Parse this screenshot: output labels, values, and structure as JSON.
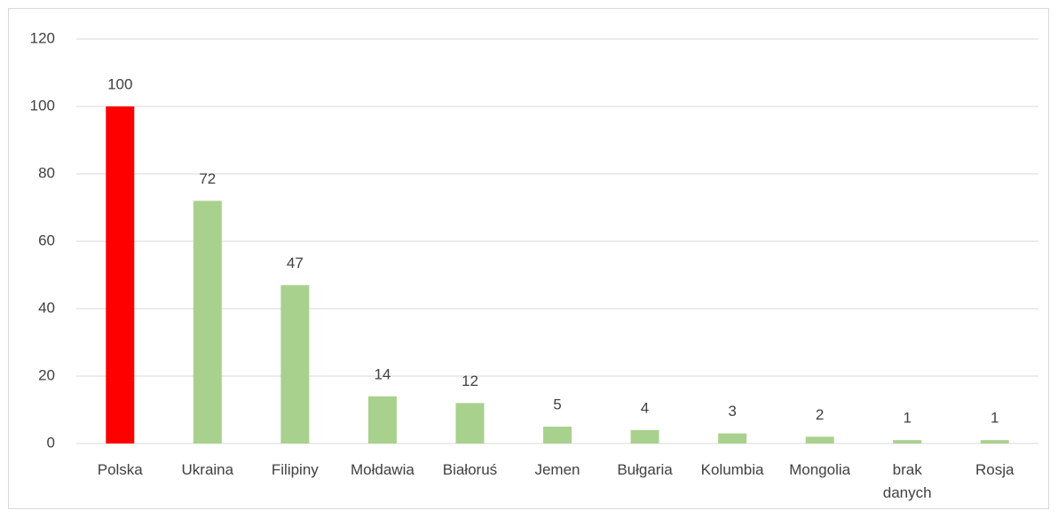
{
  "chart_data": {
    "type": "bar",
    "categories": [
      "Polska",
      "Ukraina",
      "Filipiny",
      "Mołdawia",
      "Białoruś",
      "Jemen",
      "Bułgaria",
      "Kolumbia",
      "Mongolia",
      "brak danych",
      "Rosja"
    ],
    "values": [
      100,
      72,
      47,
      14,
      12,
      5,
      4,
      3,
      2,
      1,
      1
    ],
    "colors": [
      "#ff0000",
      "#a9d18e",
      "#a9d18e",
      "#a9d18e",
      "#a9d18e",
      "#a9d18e",
      "#a9d18e",
      "#a9d18e",
      "#a9d18e",
      "#a9d18e",
      "#a9d18e"
    ],
    "ylim": [
      0,
      120
    ],
    "yticks": [
      0,
      20,
      40,
      60,
      80,
      100,
      120
    ],
    "grid": true
  }
}
